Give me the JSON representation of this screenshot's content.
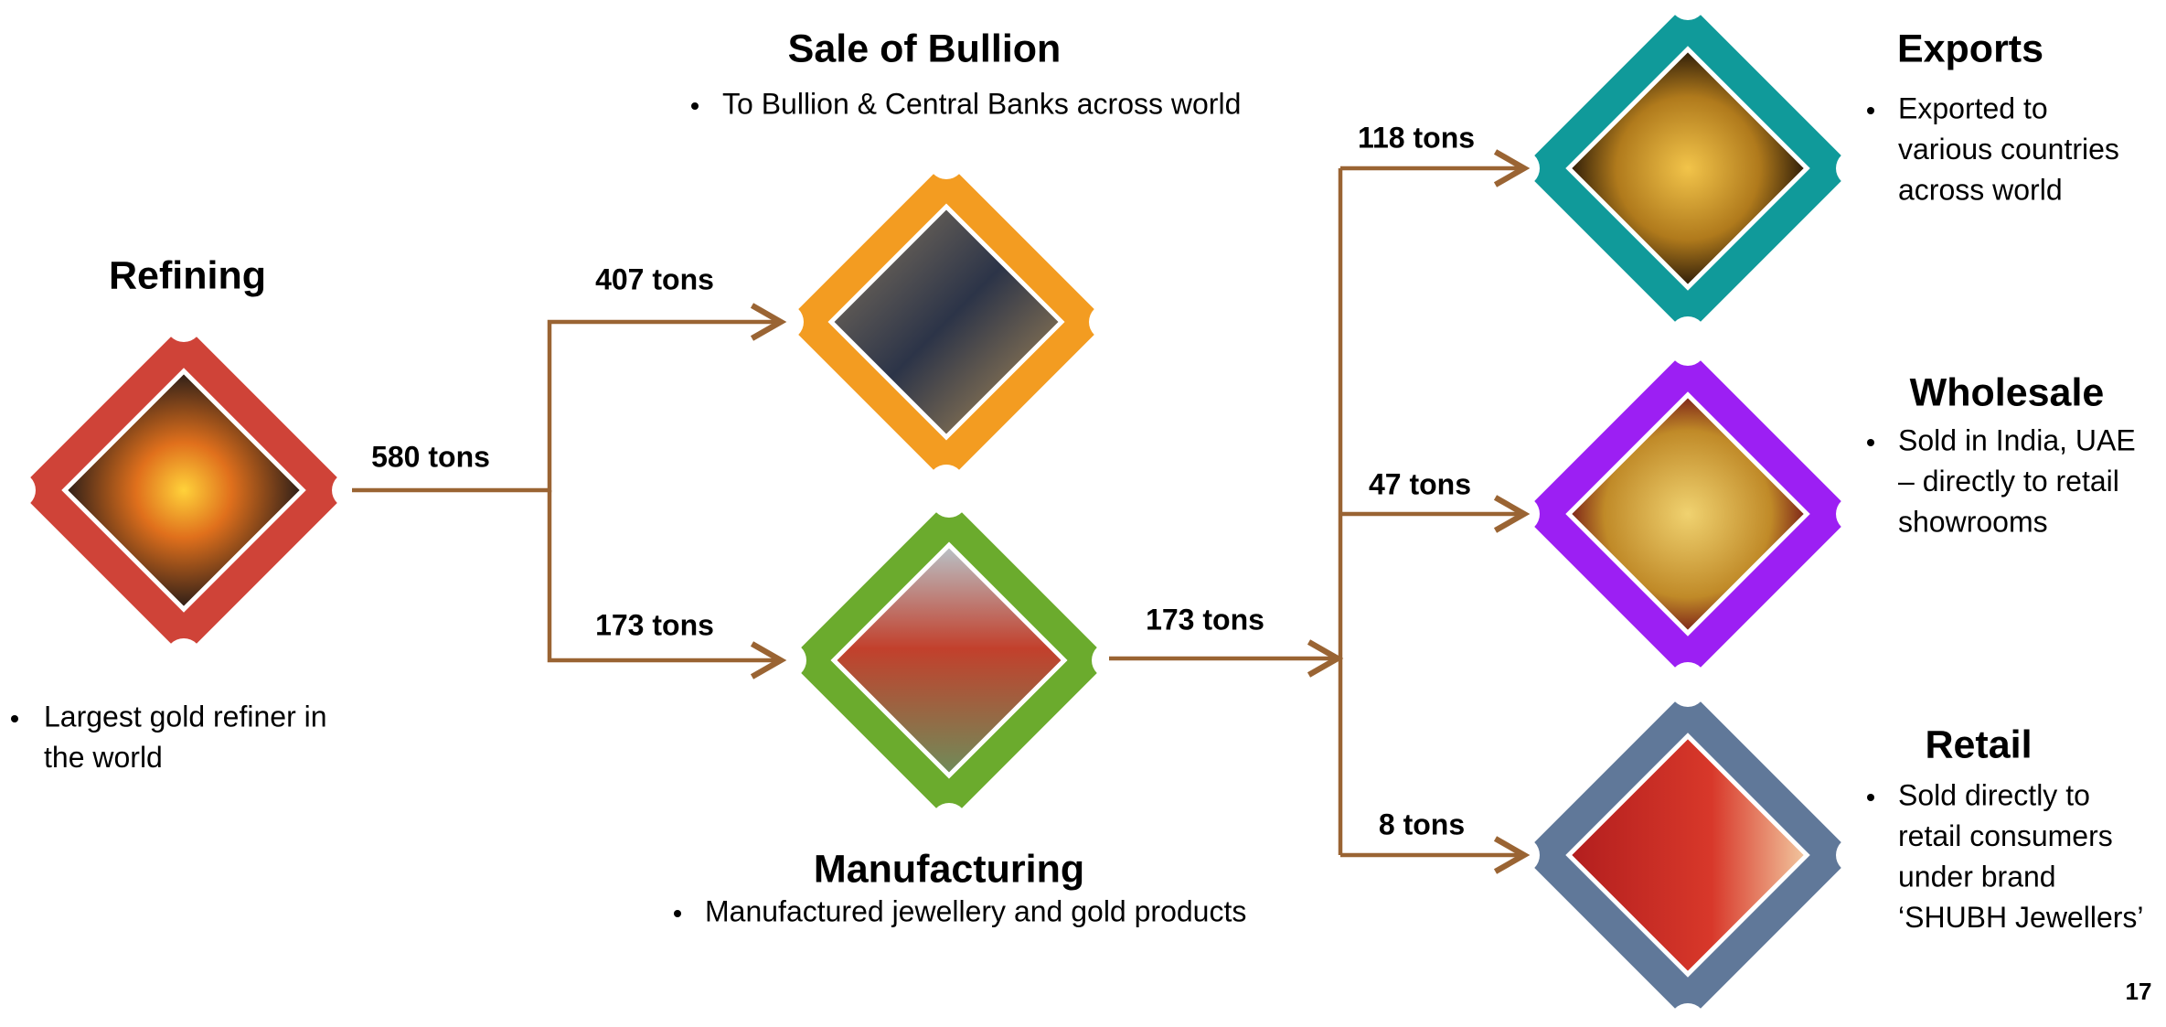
{
  "nodes": [
    {
      "title": "Refining",
      "bullet": [
        "Largest gold refiner in",
        "the world"
      ]
    },
    {
      "title": "Sale of Bullion",
      "bullet": [
        "To Bullion & Central Banks across world"
      ]
    },
    {
      "title": "Manufacturing",
      "bullet": [
        "Manufactured jewellery and gold products"
      ]
    },
    {
      "title": "Exports",
      "bullet": [
        "Exported to",
        "various countries",
        "across world"
      ]
    },
    {
      "title": "Wholesale",
      "bullet": [
        "Sold in India, UAE",
        "– directly to retail",
        "showrooms"
      ]
    },
    {
      "title": "Retail",
      "bullet": [
        "Sold directly to",
        "retail consumers",
        "under brand",
        "‘SHUBH Jewellers’"
      ]
    }
  ],
  "edges": [
    {
      "label": "580 tons"
    },
    {
      "label": "407 tons"
    },
    {
      "label": "173 tons"
    },
    {
      "label": "173 tons"
    },
    {
      "label": "118 tons"
    },
    {
      "label": "47 tons"
    },
    {
      "label": "8 tons"
    }
  ],
  "page_number": "17"
}
